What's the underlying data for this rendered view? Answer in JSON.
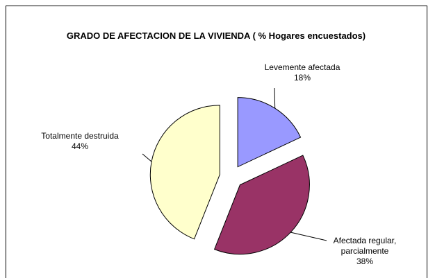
{
  "chart_data": {
    "type": "pie",
    "title": "GRADO DE AFECTACION DE LA VIVIENDA ( % Hogares encuestados)",
    "categories": [
      "Levemente afectada",
      "Afectada regular, parcialmente",
      "Totalmente destruida"
    ],
    "values": [
      18,
      38,
      44
    ],
    "value_labels": [
      "18%",
      "38%",
      "44%"
    ],
    "colors": [
      "#9999ff",
      "#993366",
      "#ffffcc"
    ]
  }
}
